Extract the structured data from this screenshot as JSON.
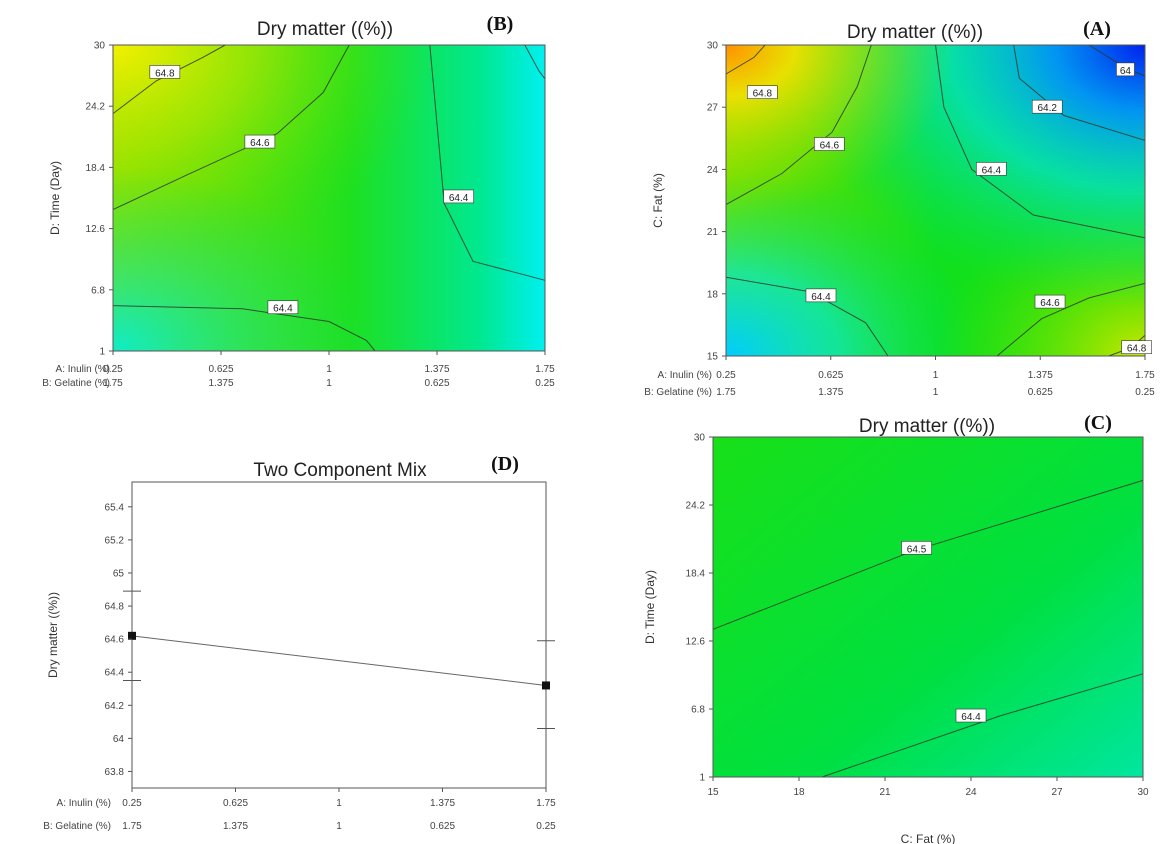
{
  "chart_data": [
    {
      "id": "B",
      "type": "contour",
      "tag": "(B)",
      "title": "Dry matter ((%))",
      "ylabel": "D: Time (Day)",
      "x_row_labels": [
        "A: Inulin (%)",
        "B: Gelatine (%)"
      ],
      "x_ticks_a": [
        "0.25",
        "0.625",
        "1",
        "1.375",
        "1.75"
      ],
      "x_ticks_b": [
        "1.75",
        "1.375",
        "1",
        "0.625",
        "0.25"
      ],
      "y_ticks": [
        "1",
        "6.8",
        "12.6",
        "18.4",
        "24.2",
        "30"
      ],
      "xlim": [
        0.25,
        1.75
      ],
      "ylim": [
        1,
        30
      ],
      "contour_labels": [
        {
          "text": "64.8",
          "x": 0.43,
          "y": 27.4
        },
        {
          "text": "64.6",
          "x": 0.76,
          "y": 20.8
        },
        {
          "text": "64.4",
          "x": 1.45,
          "y": 15.6
        },
        {
          "text": "64.4",
          "x": 0.84,
          "y": 5.1
        }
      ]
    },
    {
      "id": "A",
      "type": "contour",
      "tag": "(A)",
      "title": "Dry matter ((%))",
      "ylabel": "C: Fat (%)",
      "x_row_labels": [
        "A: Inulin (%)",
        "B: Gelatine (%)"
      ],
      "x_ticks_a": [
        "0.25",
        "0.625",
        "1",
        "1.375",
        "1.75"
      ],
      "x_ticks_b": [
        "1.75",
        "1.375",
        "1",
        "0.625",
        "0.25"
      ],
      "y_ticks": [
        "15",
        "18",
        "21",
        "24",
        "27",
        "30"
      ],
      "xlim": [
        0.25,
        1.75
      ],
      "ylim": [
        15,
        30
      ],
      "contour_labels": [
        {
          "text": "64",
          "x": 1.68,
          "y": 28.8
        },
        {
          "text": "64.2",
          "x": 1.4,
          "y": 27.0
        },
        {
          "text": "64.8",
          "x": 0.38,
          "y": 27.7
        },
        {
          "text": "64.6",
          "x": 0.62,
          "y": 25.2
        },
        {
          "text": "64.4",
          "x": 1.2,
          "y": 24.0
        },
        {
          "text": "64.4",
          "x": 0.59,
          "y": 17.9
        },
        {
          "text": "64.6",
          "x": 1.41,
          "y": 17.6
        },
        {
          "text": "64.8",
          "x": 1.72,
          "y": 15.4
        }
      ]
    },
    {
      "id": "D",
      "type": "line",
      "tag": "(D)",
      "title": "Two Component Mix",
      "ylabel": "Dry matter ((%))",
      "x_row_labels": [
        "A: Inulin (%)",
        "B: Gelatine (%)"
      ],
      "x_ticks_a": [
        "0.25",
        "0.625",
        "1",
        "1.375",
        "1.75"
      ],
      "x_ticks_b": [
        "1.75",
        "1.375",
        "1",
        "0.625",
        "0.25"
      ],
      "y_ticks": [
        "63.8",
        "64",
        "64.2",
        "64.4",
        "64.6",
        "64.8",
        "65",
        "65.2",
        "65.4"
      ],
      "xlim": [
        0.25,
        1.75
      ],
      "ylim": [
        63.7,
        65.55
      ],
      "points": [
        {
          "x": 0.25,
          "y": 64.62,
          "low": 64.35,
          "high": 64.89
        },
        {
          "x": 1.75,
          "y": 64.32,
          "low": 64.06,
          "high": 64.59
        }
      ]
    },
    {
      "id": "C",
      "type": "contour",
      "tag": "(C)",
      "title": "Dry matter ((%))",
      "xlabel": "C: Fat (%)",
      "ylabel": "D: Time (Day)",
      "x_ticks": [
        "15",
        "18",
        "21",
        "24",
        "27",
        "30"
      ],
      "y_ticks": [
        "1",
        "6.8",
        "12.6",
        "18.4",
        "24.2",
        "30"
      ],
      "xlim": [
        15,
        30
      ],
      "ylim": [
        1,
        30
      ],
      "contour_labels": [
        {
          "text": "64.5",
          "x": 22.1,
          "y": 20.5
        },
        {
          "text": "64.4",
          "x": 24.0,
          "y": 6.2
        }
      ]
    }
  ]
}
